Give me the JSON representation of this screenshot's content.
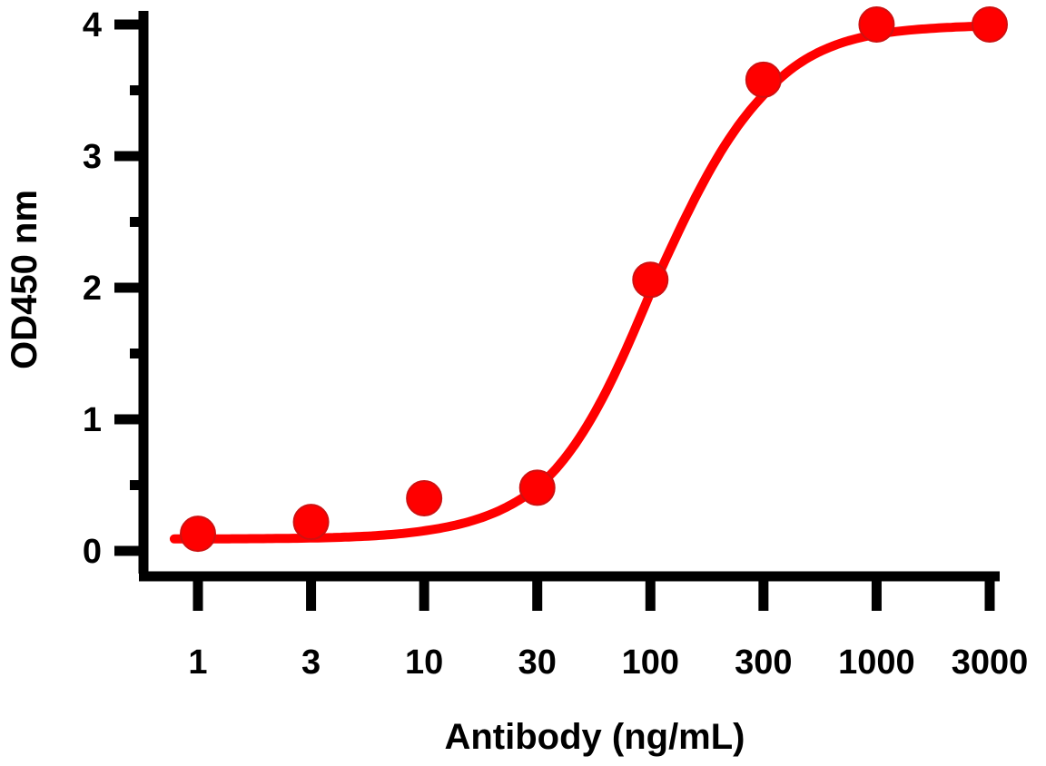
{
  "chart_data": {
    "type": "line",
    "title": "",
    "xlabel": "Antibody (ng/mL)",
    "ylabel": "OD450 nm",
    "xscale": "log",
    "x_ticks": [
      1,
      3,
      10,
      30,
      100,
      300,
      1000,
      3000
    ],
    "x_tick_labels": [
      "1",
      "3",
      "10",
      "30",
      "100",
      "300",
      "1000",
      "3000"
    ],
    "y_ticks": [
      0,
      1,
      2,
      3,
      4
    ],
    "y_tick_labels": [
      "0",
      "1",
      "2",
      "3",
      "4"
    ],
    "y_minor_ticks": [
      0.5,
      1.5,
      2.5,
      3.5
    ],
    "ylim": [
      0,
      4
    ],
    "grid": false,
    "legend": "none",
    "series": [
      {
        "name": "Antibody",
        "color": "#ff0000",
        "x": [
          1,
          3,
          10,
          30,
          100,
          300,
          1000,
          3000
        ],
        "values": [
          0.13,
          0.22,
          0.4,
          0.48,
          2.06,
          3.58,
          4.0,
          4.0
        ],
        "fit": "4PL",
        "fit_params": {
          "bottom": 0.09,
          "top": 4.0,
          "ec50": 105,
          "hill": 1.75
        }
      }
    ]
  }
}
